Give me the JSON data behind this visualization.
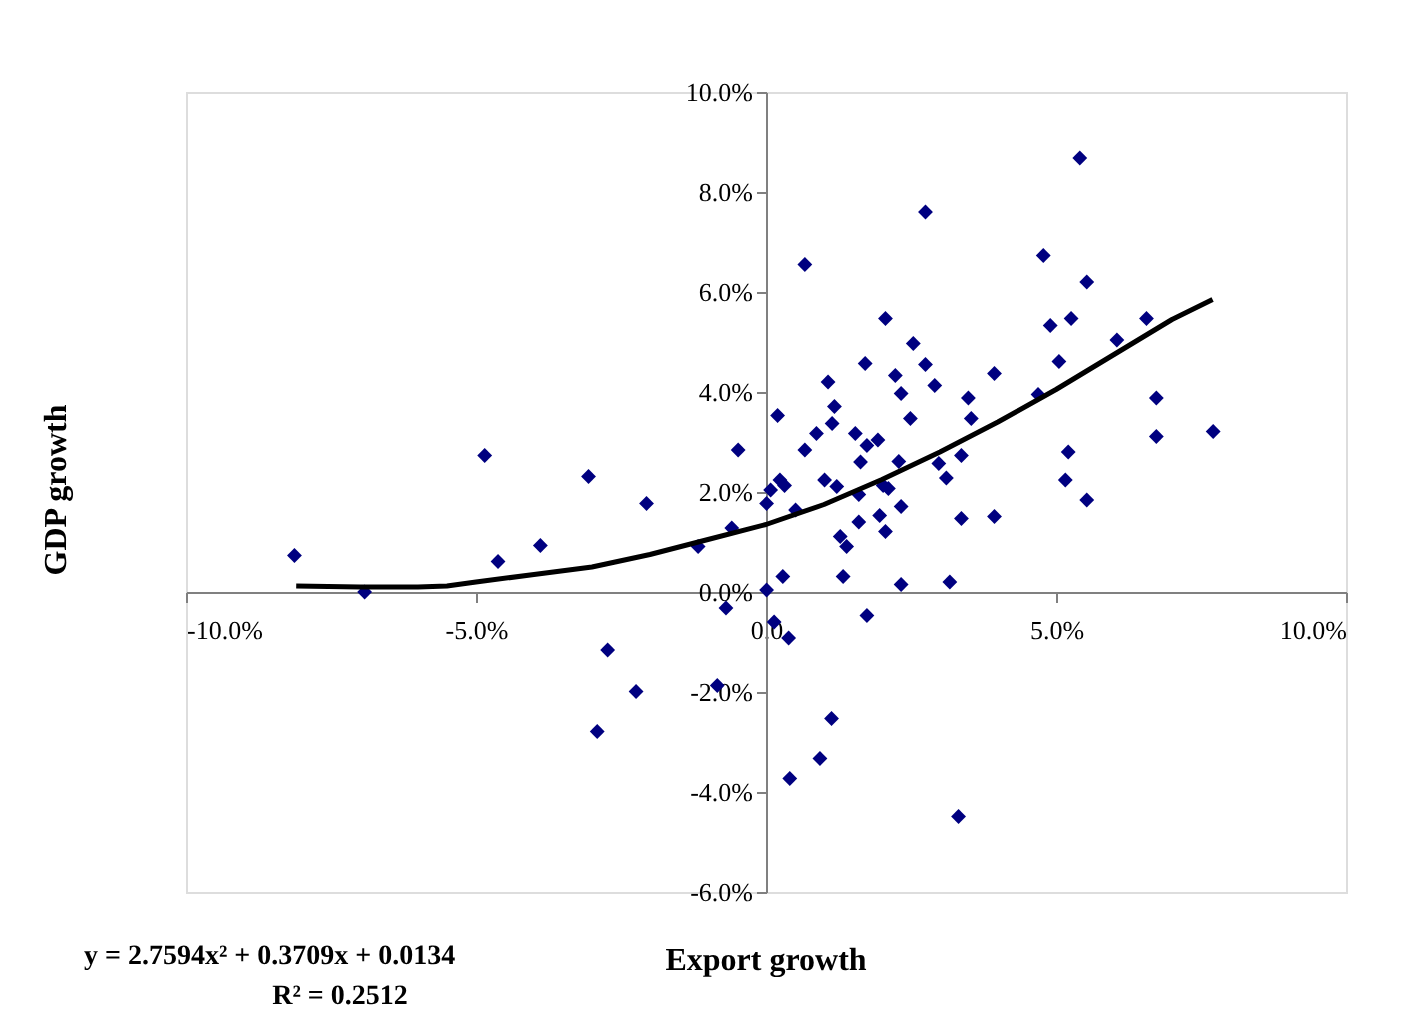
{
  "chart_data": {
    "type": "scatter",
    "xlabel": "Export growth",
    "ylabel": "GDP growth",
    "xlim": [
      -10,
      10
    ],
    "ylim": [
      -6,
      10
    ],
    "xticks": [
      {
        "value": -10,
        "label": "-10.0%"
      },
      {
        "value": -5,
        "label": "-5.0%"
      },
      {
        "value": 0,
        "label": "0.0"
      },
      {
        "value": 5,
        "label": "5.0%"
      },
      {
        "value": 10,
        "label": "10.0%"
      }
    ],
    "yticks": [
      {
        "value": -6,
        "label": "-6.0%"
      },
      {
        "value": -4,
        "label": "-4.0%"
      },
      {
        "value": -2,
        "label": "-2.0%"
      },
      {
        "value": 0,
        "label": "0.0%"
      },
      {
        "value": 2,
        "label": "2.0%"
      },
      {
        "value": 4,
        "label": "4.0%"
      },
      {
        "value": 6,
        "label": "6.0%"
      },
      {
        "value": 8,
        "label": "8.0%"
      },
      {
        "value": 10,
        "label": "10.0%"
      }
    ],
    "grid": false,
    "marker": "diamond",
    "annotations": [
      "y = 2.7594x² + 0.3709x + 0.0134",
      "R² = 0.2512"
    ],
    "series": [
      {
        "color": "#000080",
        "x": [
          -8.13,
          -6.92,
          -4.85,
          -4.62,
          -3.89,
          -3.06,
          -2.73,
          -2.91,
          -2.24,
          -2.06,
          -1.17,
          -0.84,
          -0.69,
          -0.59,
          -0.48,
          0.01,
          0.01,
          0.08,
          0.14,
          0.2,
          0.24,
          0.32,
          0.29,
          0.39,
          0.41,
          0.51,
          0.67,
          0.67,
          0.87,
          1.07,
          1.18,
          1.14,
          1.01,
          1.22,
          1.28,
          1.39,
          1.33,
          1.13,
          0.93,
          1.54,
          1.71,
          1.74,
          1.93,
          1.63,
          1.6,
          1.6,
          1.74,
          2.06,
          2.23,
          2.33,
          2.54,
          2.75,
          2.75,
          2.91,
          2.49,
          2.29,
          2.02,
          2.11,
          2.33,
          1.96,
          2.06,
          2.33,
          2.98,
          3.11,
          3.17,
          3.37,
          3.37,
          3.49,
          3.54,
          3.32,
          3.94,
          3.94,
          4.69,
          4.78,
          4.9,
          5.26,
          5.05,
          5.41,
          5.53,
          5.21,
          5.16,
          5.53,
          6.05,
          6.56,
          6.73,
          6.73,
          7.71
        ],
        "values": [
          0.73,
          0.0,
          2.73,
          0.61,
          0.93,
          2.31,
          -1.16,
          -2.79,
          -1.99,
          1.77,
          0.91,
          -1.87,
          -0.32,
          1.28,
          2.84,
          0.04,
          1.77,
          2.04,
          -0.6,
          3.53,
          2.24,
          2.13,
          0.31,
          -0.92,
          -3.73,
          1.64,
          6.55,
          2.84,
          3.17,
          4.2,
          3.71,
          3.37,
          2.24,
          2.11,
          1.11,
          0.91,
          0.31,
          -2.53,
          -3.33,
          3.17,
          4.57,
          2.93,
          3.04,
          2.6,
          1.95,
          1.4,
          -0.47,
          5.47,
          4.33,
          3.97,
          4.97,
          7.6,
          4.55,
          4.13,
          3.47,
          2.61,
          2.13,
          2.07,
          1.71,
          1.53,
          1.21,
          0.15,
          2.57,
          2.28,
          0.2,
          2.73,
          1.47,
          3.88,
          3.47,
          -4.49,
          4.37,
          1.51,
          3.95,
          6.73,
          5.33,
          5.47,
          4.61,
          8.68,
          6.2,
          2.8,
          2.24,
          1.84,
          5.04,
          5.47,
          3.88,
          3.11,
          3.21
        ]
      },
      {
        "type": "line",
        "color": "#000000",
        "line_style": "solid",
        "marker": "none",
        "x": [
          -8.1,
          -7,
          -6,
          -5.5,
          -5,
          -4,
          -3,
          -2,
          -1,
          0,
          1,
          2,
          3,
          4,
          5,
          6,
          7,
          7.7
        ],
        "values": [
          0.12,
          0.1,
          0.1,
          0.12,
          0.2,
          0.35,
          0.5,
          0.75,
          1.05,
          1.35,
          1.75,
          2.25,
          2.8,
          3.4,
          4.05,
          4.75,
          5.45,
          5.85
        ]
      }
    ]
  }
}
